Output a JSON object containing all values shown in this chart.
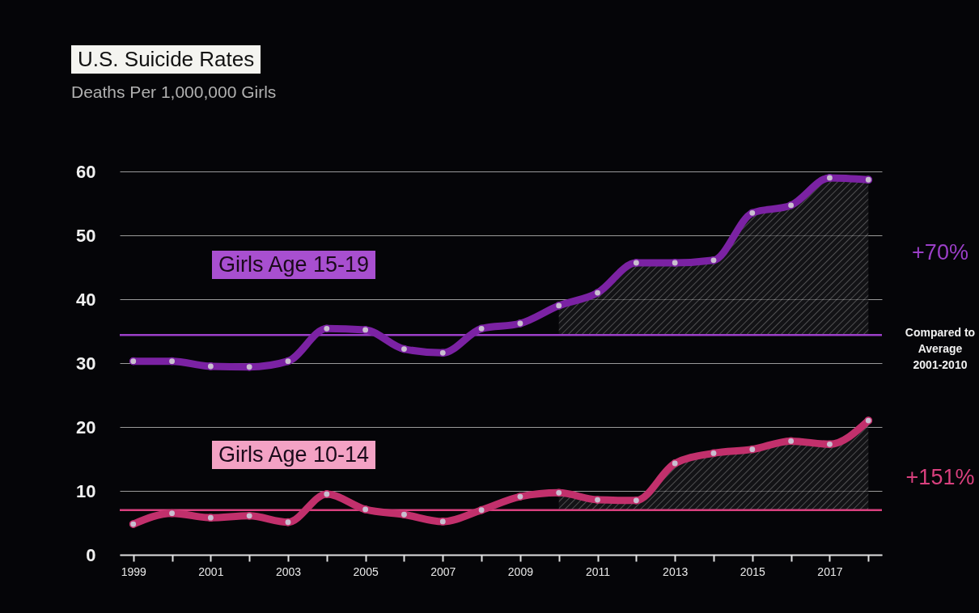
{
  "chart_data": {
    "type": "line",
    "title": "U.S. Suicide Rates",
    "subtitle": "Deaths Per 1,000,000 Girls",
    "x": [
      1999,
      2000,
      2001,
      2002,
      2003,
      2004,
      2005,
      2006,
      2007,
      2008,
      2009,
      2010,
      2011,
      2012,
      2013,
      2014,
      2015,
      2016,
      2017,
      2018
    ],
    "series": [
      {
        "name": "Girls Age 15-19",
        "color": "#7b22a3",
        "values": [
          30.3,
          30.3,
          29.5,
          29.4,
          30.3,
          35.4,
          35.2,
          32.2,
          31.6,
          35.4,
          36.2,
          39,
          41,
          45.7,
          45.7,
          46.1,
          53.5,
          54.7,
          59,
          58.7
        ]
      },
      {
        "name": "Girls Age 10-14",
        "color": "#c2306c",
        "values": [
          4.8,
          6.5,
          5.8,
          6.1,
          5.1,
          9.5,
          7.1,
          6.3,
          5.2,
          7,
          9.1,
          9.7,
          8.6,
          8.5,
          14.3,
          15.9,
          16.5,
          17.8,
          17.3,
          21
        ]
      }
    ],
    "ref_lines": [
      {
        "axis": "y",
        "value": 34.4,
        "color": "#9b3fc7"
      },
      {
        "axis": "y",
        "value": 7,
        "color": "#d9407e"
      }
    ],
    "annotations": [
      "+70%",
      "Compared to\nAverage\n2001-2010",
      "+151%"
    ],
    "xlim": [
      1998.65,
      2018.35
    ],
    "xticks": [
      1999,
      {
        "value": 2000,
        "label": null
      },
      2001,
      {
        "value": 2002,
        "label": null
      },
      2003,
      {
        "value": 2004,
        "label": null
      },
      2005,
      {
        "value": 2006,
        "label": null
      },
      2007,
      {
        "value": 2008,
        "label": null
      },
      2009,
      {
        "value": 2010,
        "label": null
      },
      2011,
      {
        "value": 2012,
        "label": null
      },
      2013,
      {
        "value": 2014,
        "label": null
      },
      2015,
      {
        "value": 2016,
        "label": null
      },
      2017,
      {
        "value": 2018,
        "label": null
      }
    ],
    "ylim": [
      0,
      60
    ],
    "yticks": [
      0,
      10,
      20,
      30,
      40,
      50,
      60
    ],
    "grid": "y",
    "marker": "circle",
    "line_style": "solid"
  }
}
